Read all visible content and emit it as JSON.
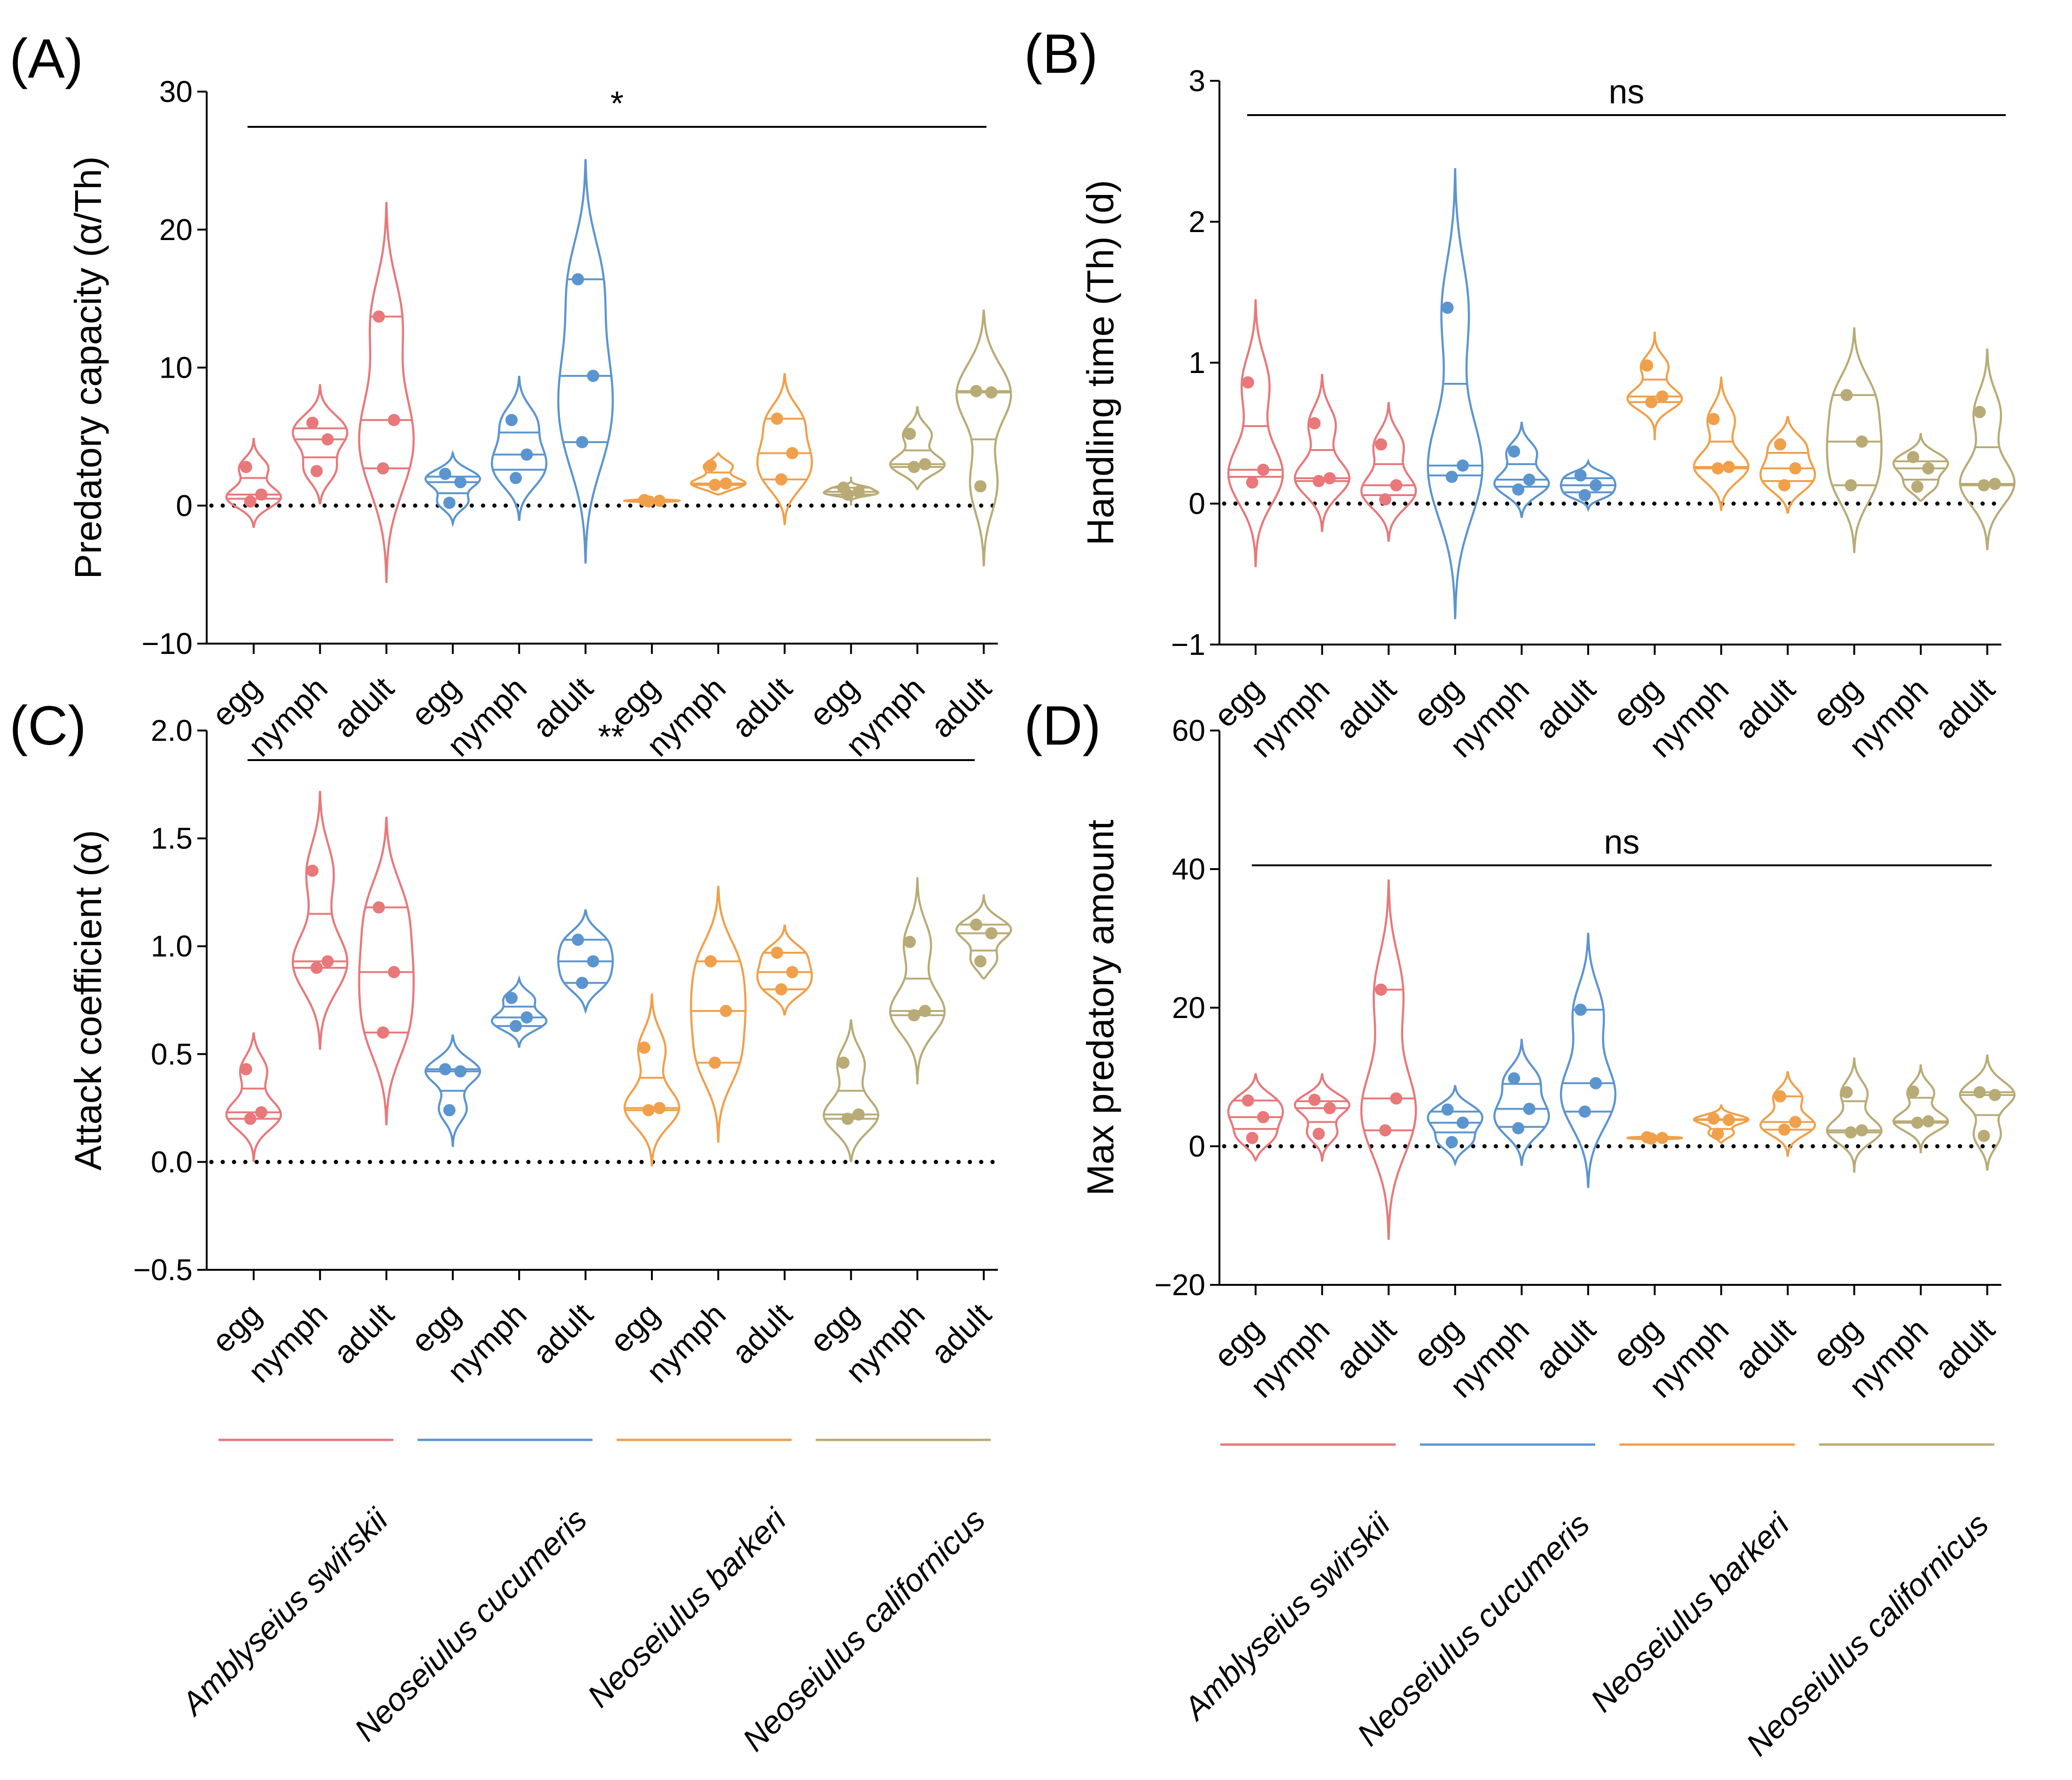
{
  "colors": {
    "Amblyseius swirskii": "#e8787a",
    "Neoseiulus cucumeris": "#5b95d0",
    "Neoseiulus barkeri": "#f0a04b",
    "Neoseiulus californicus": "#b9ab76"
  },
  "chart_data": [
    {
      "type": "violin",
      "panel": "(A)",
      "ylabel": "Predatory capacity (α/Th)",
      "ylim": [
        -10,
        30
      ],
      "yticks": [
        "−10",
        "0",
        "10",
        "20",
        "30"
      ],
      "ytick_values": [
        -10,
        0,
        10,
        20,
        30
      ],
      "reference_line": 0,
      "significance": "*",
      "categories": [
        "egg",
        "nymph",
        "adult",
        "egg",
        "nymph",
        "adult",
        "egg",
        "nymph",
        "adult",
        "egg",
        "nymph",
        "adult"
      ],
      "species": [
        "Amblyseius swirskii",
        "Neoseiulus cucumeris",
        "Neoseiulus barkeri",
        "Neoseiulus californicus"
      ],
      "groups": [
        {
          "species": "Amblyseius swirskii",
          "stage": "egg",
          "values": [
            2.8,
            0.8,
            0.3
          ],
          "median": 0.8,
          "q1": 0.5,
          "q3": 2.0,
          "range": [
            -1.6,
            4.9
          ]
        },
        {
          "species": "Amblyseius swirskii",
          "stage": "nymph",
          "values": [
            6.0,
            4.8,
            2.5
          ],
          "median": 4.8,
          "q1": 3.5,
          "q3": 5.6,
          "range": [
            0.1,
            8.8
          ]
        },
        {
          "species": "Amblyseius swirskii",
          "stage": "adult",
          "values": [
            13.7,
            6.2,
            2.7
          ],
          "median": 6.2,
          "q1": 2.7,
          "q3": 13.7,
          "range": [
            -5.6,
            22.0
          ]
        },
        {
          "species": "Neoseiulus cucumeris",
          "stage": "egg",
          "values": [
            2.3,
            1.7,
            0.2
          ],
          "median": 1.7,
          "q1": 0.9,
          "q3": 2.1,
          "range": [
            -1.3,
            3.8
          ]
        },
        {
          "species": "Neoseiulus cucumeris",
          "stage": "nymph",
          "values": [
            6.2,
            3.7,
            2.0
          ],
          "median": 3.7,
          "q1": 2.6,
          "q3": 5.3,
          "range": [
            -1.1,
            9.4
          ]
        },
        {
          "species": "Neoseiulus cucumeris",
          "stage": "adult",
          "values": [
            16.4,
            9.4,
            4.6
          ],
          "median": 9.4,
          "q1": 4.6,
          "q3": 16.4,
          "range": [
            -4.2,
            25.1
          ]
        },
        {
          "species": "Neoseiulus barkeri",
          "stage": "egg",
          "values": [
            0.4,
            0.35,
            0.3
          ],
          "median": 0.35,
          "q1": 0.3,
          "q3": 0.4,
          "range": [
            0.05,
            0.7
          ]
        },
        {
          "species": "Neoseiulus barkeri",
          "stage": "nymph",
          "values": [
            2.9,
            1.6,
            1.5
          ],
          "median": 1.6,
          "q1": 1.5,
          "q3": 2.4,
          "range": [
            0.8,
            3.8
          ]
        },
        {
          "species": "Neoseiulus barkeri",
          "stage": "adult",
          "values": [
            6.3,
            3.8,
            1.9
          ],
          "median": 3.8,
          "q1": 1.9,
          "q3": 6.3,
          "range": [
            -1.4,
            9.6
          ]
        },
        {
          "species": "Neoseiulus californicus",
          "stage": "egg",
          "values": [
            1.3,
            1.0,
            0.8
          ],
          "median": 1.0,
          "q1": 0.8,
          "q3": 1.3,
          "range": [
            0.0,
            2.1
          ]
        },
        {
          "species": "Neoseiulus californicus",
          "stage": "nymph",
          "values": [
            5.2,
            3.0,
            2.8
          ],
          "median": 3.0,
          "q1": 2.8,
          "q3": 4.0,
          "range": [
            1.2,
            7.2
          ]
        },
        {
          "species": "Neoseiulus californicus",
          "stage": "adult",
          "values": [
            8.3,
            8.2,
            1.4
          ],
          "median": 8.2,
          "q1": 4.8,
          "q3": 8.3,
          "range": [
            -4.4,
            14.2
          ]
        }
      ]
    },
    {
      "type": "violin",
      "panel": "(B)",
      "ylabel": "Handling time (Th) (d)",
      "ylim": [
        -1,
        3
      ],
      "yticks": [
        "−1",
        "0",
        "1",
        "2",
        "3"
      ],
      "ytick_values": [
        -1,
        0,
        1,
        2,
        3
      ],
      "reference_line": 0,
      "significance": "ns",
      "categories": [
        "egg",
        "nymph",
        "adult",
        "egg",
        "nymph",
        "adult",
        "egg",
        "nymph",
        "adult",
        "egg",
        "nymph",
        "adult"
      ],
      "species": [
        "Amblyseius swirskii",
        "Neoseiulus cucumeris",
        "Neoseiulus barkeri",
        "Neoseiulus californicus"
      ],
      "groups": [
        {
          "species": "Amblyseius swirskii",
          "stage": "egg",
          "values": [
            0.86,
            0.24,
            0.15
          ],
          "median": 0.24,
          "q1": 0.19,
          "q3": 0.55,
          "range": [
            -0.45,
            1.45
          ]
        },
        {
          "species": "Amblyseius swirskii",
          "stage": "nymph",
          "values": [
            0.57,
            0.18,
            0.16
          ],
          "median": 0.18,
          "q1": 0.16,
          "q3": 0.38,
          "range": [
            -0.2,
            0.92
          ]
        },
        {
          "species": "Amblyseius swirskii",
          "stage": "adult",
          "values": [
            0.42,
            0.13,
            0.03
          ],
          "median": 0.13,
          "q1": 0.06,
          "q3": 0.28,
          "range": [
            -0.27,
            0.72
          ]
        },
        {
          "species": "Neoseiulus cucumeris",
          "stage": "egg",
          "values": [
            1.39,
            0.27,
            0.19
          ],
          "median": 0.27,
          "q1": 0.2,
          "q3": 0.85,
          "range": [
            -0.82,
            2.38
          ]
        },
        {
          "species": "Neoseiulus cucumeris",
          "stage": "nymph",
          "values": [
            0.37,
            0.17,
            0.1
          ],
          "median": 0.17,
          "q1": 0.12,
          "q3": 0.28,
          "range": [
            -0.1,
            0.58
          ]
        },
        {
          "species": "Neoseiulus cucumeris",
          "stage": "adult",
          "values": [
            0.2,
            0.13,
            0.06
          ],
          "median": 0.13,
          "q1": 0.08,
          "q3": 0.18,
          "range": [
            -0.04,
            0.3
          ]
        },
        {
          "species": "Neoseiulus barkeri",
          "stage": "egg",
          "values": [
            0.98,
            0.76,
            0.72
          ],
          "median": 0.76,
          "q1": 0.72,
          "q3": 0.88,
          "range": [
            0.45,
            1.22
          ]
        },
        {
          "species": "Neoseiulus barkeri",
          "stage": "nymph",
          "values": [
            0.6,
            0.26,
            0.25
          ],
          "median": 0.26,
          "q1": 0.25,
          "q3": 0.44,
          "range": [
            -0.05,
            0.9
          ]
        },
        {
          "species": "Neoseiulus barkeri",
          "stage": "adult",
          "values": [
            0.42,
            0.25,
            0.13
          ],
          "median": 0.25,
          "q1": 0.16,
          "q3": 0.36,
          "range": [
            -0.07,
            0.62
          ]
        },
        {
          "species": "Neoseiulus californicus",
          "stage": "egg",
          "values": [
            0.77,
            0.44,
            0.13
          ],
          "median": 0.44,
          "q1": 0.13,
          "q3": 0.77,
          "range": [
            -0.35,
            1.25
          ]
        },
        {
          "species": "Neoseiulus californicus",
          "stage": "nymph",
          "values": [
            0.33,
            0.25,
            0.12
          ],
          "median": 0.25,
          "q1": 0.17,
          "q3": 0.3,
          "range": [
            0.02,
            0.5
          ]
        },
        {
          "species": "Neoseiulus californicus",
          "stage": "adult",
          "values": [
            0.65,
            0.14,
            0.13
          ],
          "median": 0.14,
          "q1": 0.13,
          "q3": 0.4,
          "range": [
            -0.33,
            1.1
          ]
        }
      ]
    },
    {
      "type": "violin",
      "panel": "(C)",
      "ylabel": "Attack coefficient (α)",
      "ylim": [
        -0.5,
        2.0
      ],
      "yticks": [
        "−0.5",
        "0.0",
        "0.5",
        "1.0",
        "1.5",
        "2.0"
      ],
      "ytick_values": [
        -0.5,
        0.0,
        0.5,
        1.0,
        1.5,
        2.0
      ],
      "reference_line": 0,
      "significance": "**",
      "categories": [
        "egg",
        "nymph",
        "adult",
        "egg",
        "nymph",
        "adult",
        "egg",
        "nymph",
        "adult",
        "egg",
        "nymph",
        "adult"
      ],
      "species": [
        "Amblyseius swirskii",
        "Neoseiulus cucumeris",
        "Neoseiulus barkeri",
        "Neoseiulus californicus"
      ],
      "groups": [
        {
          "species": "Amblyseius swirskii",
          "stage": "egg",
          "values": [
            0.43,
            0.23,
            0.2
          ],
          "median": 0.23,
          "q1": 0.2,
          "q3": 0.34,
          "range": [
            0.0,
            0.6
          ]
        },
        {
          "species": "Amblyseius swirskii",
          "stage": "nymph",
          "values": [
            1.35,
            0.93,
            0.9
          ],
          "median": 0.93,
          "q1": 0.9,
          "q3": 1.15,
          "range": [
            0.52,
            1.72
          ]
        },
        {
          "species": "Amblyseius swirskii",
          "stage": "adult",
          "values": [
            1.18,
            0.88,
            0.6
          ],
          "median": 0.88,
          "q1": 0.6,
          "q3": 1.18,
          "range": [
            0.17,
            1.6
          ]
        },
        {
          "species": "Neoseiulus cucumeris",
          "stage": "egg",
          "values": [
            0.43,
            0.42,
            0.24
          ],
          "median": 0.42,
          "q1": 0.33,
          "q3": 0.43,
          "range": [
            0.07,
            0.59
          ]
        },
        {
          "species": "Neoseiulus cucumeris",
          "stage": "nymph",
          "values": [
            0.76,
            0.67,
            0.63
          ],
          "median": 0.67,
          "q1": 0.63,
          "q3": 0.72,
          "range": [
            0.53,
            0.85
          ]
        },
        {
          "species": "Neoseiulus cucumeris",
          "stage": "adult",
          "values": [
            1.03,
            0.93,
            0.83
          ],
          "median": 0.93,
          "q1": 0.83,
          "q3": 1.03,
          "range": [
            0.7,
            1.17
          ]
        },
        {
          "species": "Neoseiulus barkeri",
          "stage": "egg",
          "values": [
            0.53,
            0.25,
            0.24
          ],
          "median": 0.25,
          "q1": 0.24,
          "q3": 0.39,
          "range": [
            -0.02,
            0.78
          ]
        },
        {
          "species": "Neoseiulus barkeri",
          "stage": "nymph",
          "values": [
            0.93,
            0.7,
            0.46
          ],
          "median": 0.7,
          "q1": 0.46,
          "q3": 0.93,
          "range": [
            0.09,
            1.28
          ]
        },
        {
          "species": "Neoseiulus barkeri",
          "stage": "adult",
          "values": [
            0.97,
            0.88,
            0.8
          ],
          "median": 0.88,
          "q1": 0.8,
          "q3": 0.97,
          "range": [
            0.68,
            1.1
          ]
        },
        {
          "species": "Neoseiulus californicus",
          "stage": "egg",
          "values": [
            0.46,
            0.22,
            0.2
          ],
          "median": 0.22,
          "q1": 0.2,
          "q3": 0.33,
          "range": [
            0.0,
            0.66
          ]
        },
        {
          "species": "Neoseiulus californicus",
          "stage": "nymph",
          "values": [
            1.02,
            0.7,
            0.68
          ],
          "median": 0.7,
          "q1": 0.68,
          "q3": 0.85,
          "range": [
            0.36,
            1.32
          ]
        },
        {
          "species": "Neoseiulus californicus",
          "stage": "adult",
          "values": [
            1.1,
            1.06,
            0.93
          ],
          "median": 1.06,
          "q1": 0.98,
          "q3": 1.1,
          "range": [
            0.85,
            1.24
          ]
        }
      ]
    },
    {
      "type": "violin",
      "panel": "(D)",
      "ylabel": "Max predatory amount",
      "ylim": [
        -20,
        60
      ],
      "yticks": [
        "−20",
        "0",
        "20",
        "40",
        "60"
      ],
      "ytick_values": [
        -20,
        0,
        20,
        40,
        60
      ],
      "reference_line": 0,
      "significance": "ns",
      "categories": [
        "egg",
        "nymph",
        "adult",
        "egg",
        "nymph",
        "adult",
        "egg",
        "nymph",
        "adult",
        "egg",
        "nymph",
        "adult"
      ],
      "species": [
        "Amblyseius swirskii",
        "Neoseiulus cucumeris",
        "Neoseiulus barkeri",
        "Neoseiulus californicus"
      ],
      "groups": [
        {
          "species": "Amblyseius swirskii",
          "stage": "egg",
          "values": [
            6.6,
            4.2,
            1.2
          ],
          "median": 4.2,
          "q1": 2.5,
          "q3": 6.6,
          "range": [
            -2.0,
            10.5
          ]
        },
        {
          "species": "Amblyseius swirskii",
          "stage": "nymph",
          "values": [
            6.7,
            5.5,
            1.8
          ],
          "median": 5.5,
          "q1": 3.5,
          "q3": 6.5,
          "range": [
            -2.2,
            10.5
          ]
        },
        {
          "species": "Amblyseius swirskii",
          "stage": "adult",
          "values": [
            22.6,
            6.9,
            2.3
          ],
          "median": 6.9,
          "q1": 2.3,
          "q3": 22.6,
          "range": [
            -13.5,
            38.5
          ]
        },
        {
          "species": "Neoseiulus cucumeris",
          "stage": "egg",
          "values": [
            5.3,
            3.4,
            0.6
          ],
          "median": 3.4,
          "q1": 2.0,
          "q3": 5.0,
          "range": [
            -2.5,
            8.8
          ]
        },
        {
          "species": "Neoseiulus cucumeris",
          "stage": "nymph",
          "values": [
            9.8,
            5.4,
            2.6
          ],
          "median": 5.4,
          "q1": 2.8,
          "q3": 9.0,
          "range": [
            -2.8,
            15.5
          ]
        },
        {
          "species": "Neoseiulus cucumeris",
          "stage": "adult",
          "values": [
            19.7,
            9.1,
            5.0
          ],
          "median": 9.1,
          "q1": 5.0,
          "q3": 19.7,
          "range": [
            -6.0,
            30.8
          ]
        },
        {
          "species": "Neoseiulus barkeri",
          "stage": "egg",
          "values": [
            1.3,
            1.2,
            1.1
          ],
          "median": 1.2,
          "q1": 1.1,
          "q3": 1.3,
          "range": [
            0.8,
            1.6
          ]
        },
        {
          "species": "Neoseiulus barkeri",
          "stage": "nymph",
          "values": [
            4.0,
            3.8,
            1.8
          ],
          "median": 3.8,
          "q1": 2.5,
          "q3": 3.9,
          "range": [
            0.5,
            6.0
          ]
        },
        {
          "species": "Neoseiulus barkeri",
          "stage": "adult",
          "values": [
            7.2,
            3.5,
            2.4
          ],
          "median": 3.5,
          "q1": 2.4,
          "q3": 7.2,
          "range": [
            -1.5,
            10.8
          ]
        },
        {
          "species": "Neoseiulus californicus",
          "stage": "egg",
          "values": [
            7.8,
            2.3,
            2.0
          ],
          "median": 2.3,
          "q1": 2.0,
          "q3": 6.5,
          "range": [
            -3.8,
            12.8
          ]
        },
        {
          "species": "Neoseiulus californicus",
          "stage": "nymph",
          "values": [
            7.9,
            3.6,
            3.4
          ],
          "median": 3.6,
          "q1": 3.4,
          "q3": 7.0,
          "range": [
            -1.0,
            11.8
          ]
        },
        {
          "species": "Neoseiulus californicus",
          "stage": "adult",
          "values": [
            7.8,
            7.4,
            1.5
          ],
          "median": 7.4,
          "q1": 4.5,
          "q3": 7.8,
          "range": [
            -3.5,
            13.2
          ]
        }
      ]
    }
  ]
}
